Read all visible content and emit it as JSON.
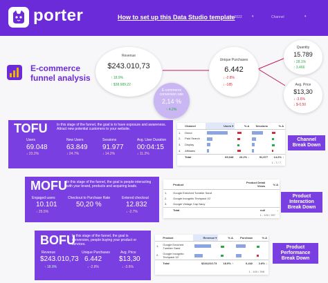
{
  "header": {
    "brand": "porter",
    "help_link": "How to set up this Data Studio template",
    "date_range": "ber 2022",
    "date_arrow": "▾",
    "channel_label": "Channel",
    "channel_arrow": "▾"
  },
  "title": {
    "text": "E-commerce funnel analysis"
  },
  "funnel": {
    "revenue": {
      "label": "Revenue",
      "value": "$243.010,73",
      "change": "↑ 18.9%",
      "delta": "↑ $38.689,22"
    },
    "conversion": {
      "label": "E-commerce conversion rate",
      "value": "2,14 %",
      "change": "↑ 4.2%"
    },
    "purchases": {
      "label": "Unique Purchases",
      "value": "6.442",
      "change": "↓ -2.8%",
      "delta": "↓ -185"
    },
    "quantity": {
      "label": "Quantity",
      "value": "15.789",
      "change": "↑ 28.1%",
      "delta": "↑ 3.466"
    },
    "avg_price": {
      "label": "Avg. Price",
      "value": "$13,30",
      "change": "↓ -3.6%",
      "delta": "↓ $-0,50"
    }
  },
  "tofu": {
    "stage": "TOFU",
    "desc": "In this stage of the funnel, the goal is to have exposure and awareness. Attract new potential customers to your website.",
    "metrics": [
      {
        "label": "Users",
        "value": "69.048",
        "change": "↓ 23.2%"
      },
      {
        "label": "New Users",
        "value": "63.849",
        "change": "↓ 24.7%"
      },
      {
        "label": "Sessions",
        "value": "91.977",
        "change": "↓ 14.2%"
      },
      {
        "label": "Avg. User Duration",
        "value": "00:04:15",
        "change": "↓ 11.2%"
      }
    ],
    "side_label": "Channel Break Down"
  },
  "channel_table": {
    "headers": [
      "",
      "Channel",
      "Users ▾",
      "% Δ",
      "Sessions",
      "% Δ"
    ],
    "rows": [
      [
        "1.",
        "Direct",
        "",
        "",
        "",
        ""
      ],
      [
        "2.",
        "Paid Search",
        "",
        "",
        "",
        ""
      ],
      [
        "3.",
        "Display",
        "",
        "",
        "",
        ""
      ],
      [
        "4.",
        "Affiliates",
        "",
        "",
        "",
        ""
      ]
    ],
    "total": [
      "",
      "Total",
      "69,048",
      "23.2% ↓",
      "91,977",
      "14.2% ↓"
    ],
    "pager": "1 - 7 / 7"
  },
  "mofu": {
    "stage": "MOFU",
    "desc": "In this stage of the funnel, the goal is people interacting with your brand, products and acquiring leads.",
    "metrics": [
      {
        "label": "Engaged users",
        "value": "10.101",
        "change": "↓ 25.5%"
      },
      {
        "label": "Checkout to Purchase Rate",
        "value": "50,20 %",
        "change": ""
      },
      {
        "label": "Entered checkout",
        "value": "12.832",
        "change": "↓ -2.7%"
      }
    ],
    "side_label": "Product Interaction Break Down"
  },
  "product_table": {
    "headers": [
      "",
      "Product",
      "Product Detail Views",
      "% Δ"
    ],
    "rows": [
      [
        "1.",
        "Google Enriched Tumbler Sand",
        "",
        ""
      ],
      [
        "2.",
        "Google Incognito Techpack V2",
        "",
        ""
      ],
      [
        "3.",
        "Google Vintage Cap Navy",
        "",
        ""
      ]
    ],
    "total": [
      "",
      "Total",
      "null",
      "-"
    ],
    "pager": "1 - 100 / 397"
  },
  "bofu": {
    "stage": "BOFU",
    "desc": "In this stage of the funnel, the goal is conversion, people buying your product or services.",
    "metrics": [
      {
        "label": "Revenue",
        "value": "$243.010,73",
        "change": "↑ 18.9%"
      },
      {
        "label": "Unique Purchases",
        "value": "6.442",
        "change": "↓ -2.8%"
      },
      {
        "label": "Avg. Price",
        "value": "$13,30",
        "change": "↓ -3.6%"
      }
    ],
    "side_label": "Product Performance Break Down"
  },
  "perf_table": {
    "headers": [
      "",
      "Product",
      "Revenue ▾",
      "% Δ",
      "Purchase",
      "% Δ"
    ],
    "rows": [
      [
        "1.",
        "Google Enriched Tumbler Sand",
        "",
        "",
        "",
        ""
      ],
      [
        "2.",
        "Google Incognito Techpack V2",
        "",
        "",
        "",
        ""
      ]
    ],
    "total": [
      "",
      "Total",
      "$243,010.73",
      "18.9% ↑",
      "6,442",
      "2.8% ↓"
    ],
    "pager": "1 - 100 / 398"
  },
  "colors": {
    "primary": "#6c2bd9",
    "card": "#7a3fe0",
    "up": "#2ba84a",
    "down": "#d12d3a",
    "conversion": "#c9b6f2"
  }
}
